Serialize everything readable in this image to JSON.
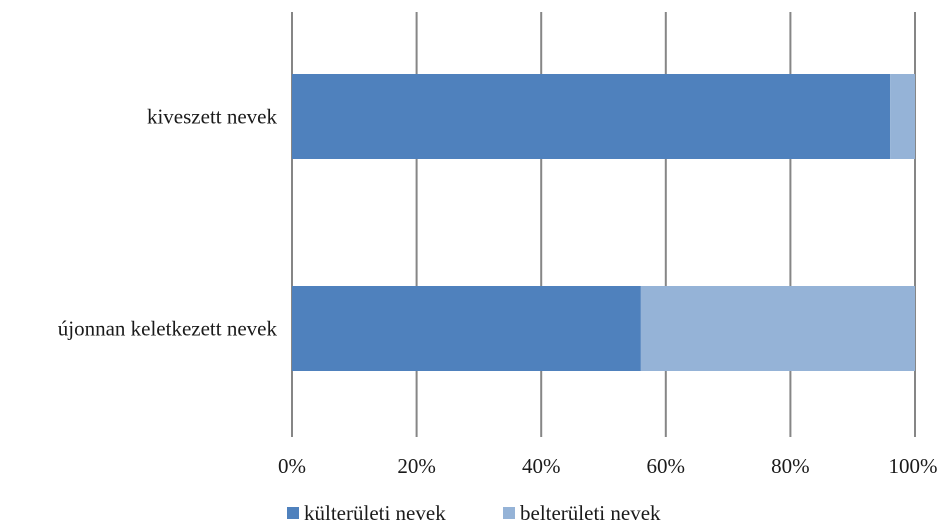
{
  "chart_data": {
    "type": "bar",
    "orientation": "horizontal",
    "stacked": "percent",
    "categories": [
      "kiveszett nevek",
      "újonnan keletkezett nevek"
    ],
    "series": [
      {
        "name": "külterületi nevek",
        "values": [
          96,
          56
        ],
        "color": "#4f81bd"
      },
      {
        "name": "belterületi nevek",
        "values": [
          4,
          44
        ],
        "color": "#95b3d7"
      }
    ],
    "xlim": [
      0,
      100
    ],
    "x_ticks": [
      0,
      20,
      40,
      60,
      80,
      100
    ],
    "tick_labels": [
      "0%",
      "20%",
      "40%",
      "60%",
      "80%",
      "100%"
    ],
    "grid": "vertical",
    "gridline_color": "#868686",
    "legend_position": "bottom"
  }
}
